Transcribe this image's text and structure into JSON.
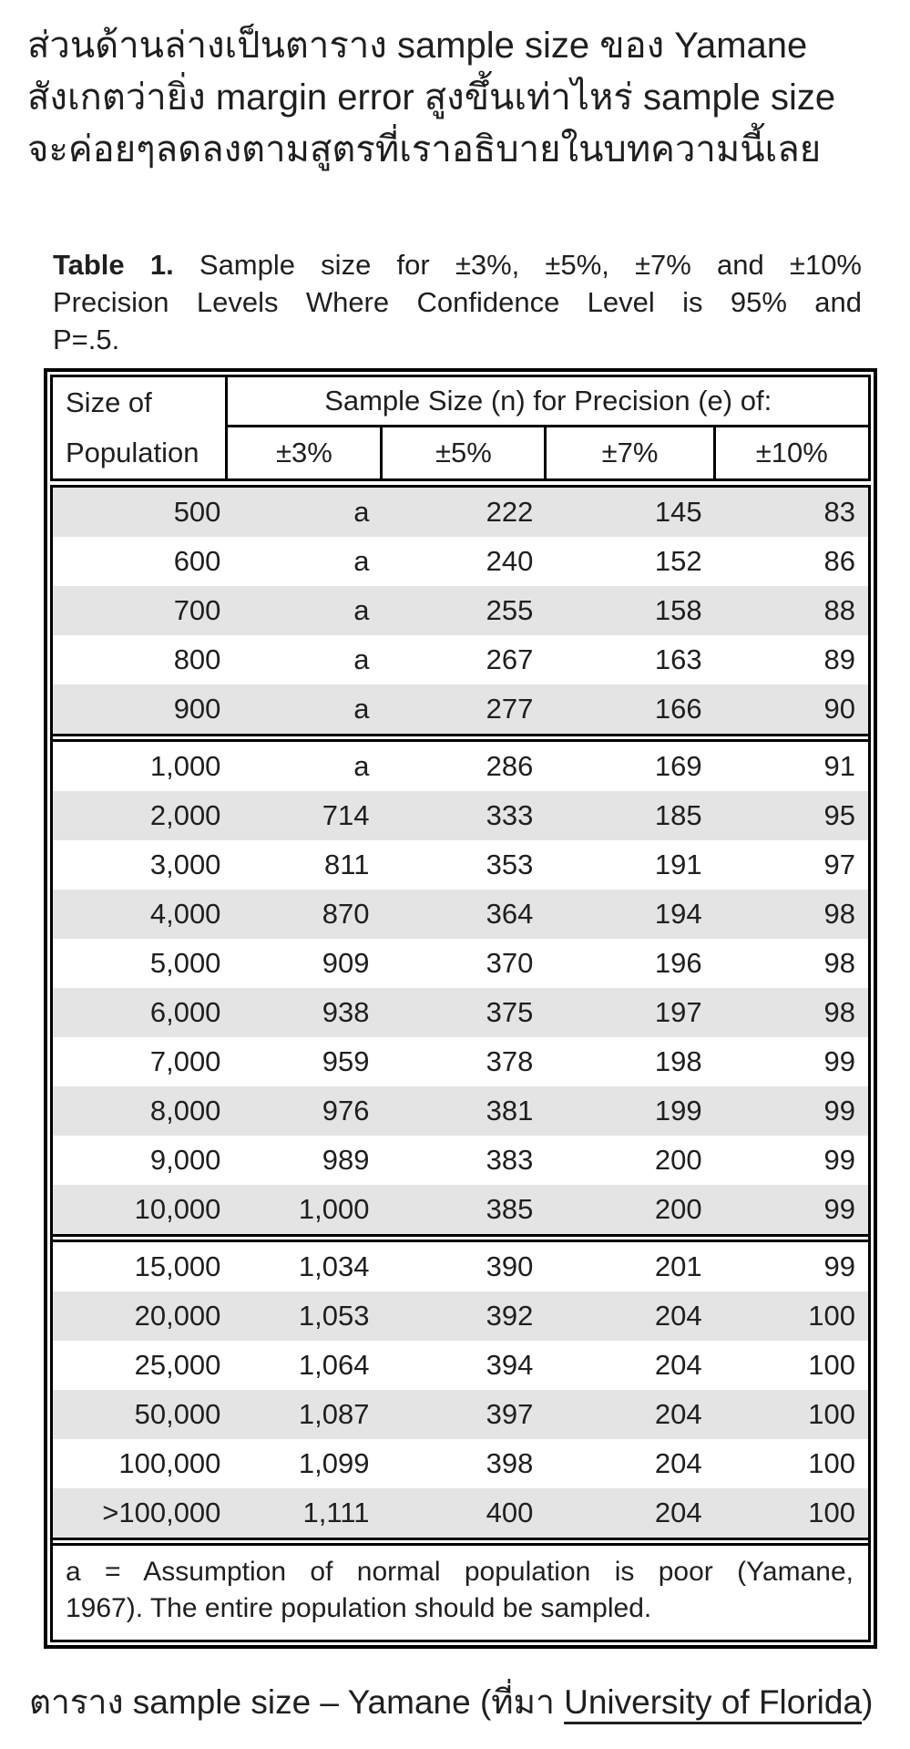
{
  "intro": {
    "lines": [
      "ส่วนด้านล่างเป็นตาราง sample size ของ Yamane",
      "สังเกตว่ายิ่ง margin error สูงขึ้นเท่าไหร่ sample size",
      "จะค่อยๆลดลงตามสูตรที่เราอธิบายในบทความนี้เลย"
    ]
  },
  "table_title": {
    "label": "Table 1.",
    "line1_rest": "Sample size for ±3%, ±5%, ±7% and ±10%",
    "line2": "Precision Levels Where Confidence Level is 95% and",
    "line3": "P=.5."
  },
  "table": {
    "corner_header_lines": [
      "Size of",
      "Population"
    ],
    "span_header": "Sample Size (n) for Precision (e) of:",
    "precision_headers": [
      "±3%",
      "±5%",
      "±7%",
      "±10%"
    ],
    "shade_color": "#e4e4e4",
    "groups": [
      {
        "rows": [
          [
            "500",
            "a",
            "222",
            "145",
            "83"
          ],
          [
            "600",
            "a",
            "240",
            "152",
            "86"
          ],
          [
            "700",
            "a",
            "255",
            "158",
            "88"
          ],
          [
            "800",
            "a",
            "267",
            "163",
            "89"
          ],
          [
            "900",
            "a",
            "277",
            "166",
            "90"
          ]
        ]
      },
      {
        "rows": [
          [
            "1,000",
            "a",
            "286",
            "169",
            "91"
          ],
          [
            "2,000",
            "714",
            "333",
            "185",
            "95"
          ],
          [
            "3,000",
            "811",
            "353",
            "191",
            "97"
          ],
          [
            "4,000",
            "870",
            "364",
            "194",
            "98"
          ],
          [
            "5,000",
            "909",
            "370",
            "196",
            "98"
          ],
          [
            "6,000",
            "938",
            "375",
            "197",
            "98"
          ],
          [
            "7,000",
            "959",
            "378",
            "198",
            "99"
          ],
          [
            "8,000",
            "976",
            "381",
            "199",
            "99"
          ],
          [
            "9,000",
            "989",
            "383",
            "200",
            "99"
          ],
          [
            "10,000",
            "1,000",
            "385",
            "200",
            "99"
          ]
        ]
      },
      {
        "rows": [
          [
            "15,000",
            "1,034",
            "390",
            "201",
            "99"
          ],
          [
            "20,000",
            "1,053",
            "392",
            "204",
            "100"
          ],
          [
            "25,000",
            "1,064",
            "394",
            "204",
            "100"
          ],
          [
            "50,000",
            "1,087",
            "397",
            "204",
            "100"
          ],
          [
            "100,000",
            "1,099",
            "398",
            "204",
            "100"
          ],
          [
            ">100,000",
            "1,111",
            "400",
            "204",
            "100"
          ]
        ]
      }
    ],
    "footnote_lines": [
      "a = Assumption of normal population is poor (Yamane,",
      "1967).  The entire population should be sampled."
    ]
  },
  "caption": {
    "prefix": "ตาราง sample size – Yamane (ที่มา ",
    "link_text": "University of Florida",
    "suffix": ")"
  }
}
